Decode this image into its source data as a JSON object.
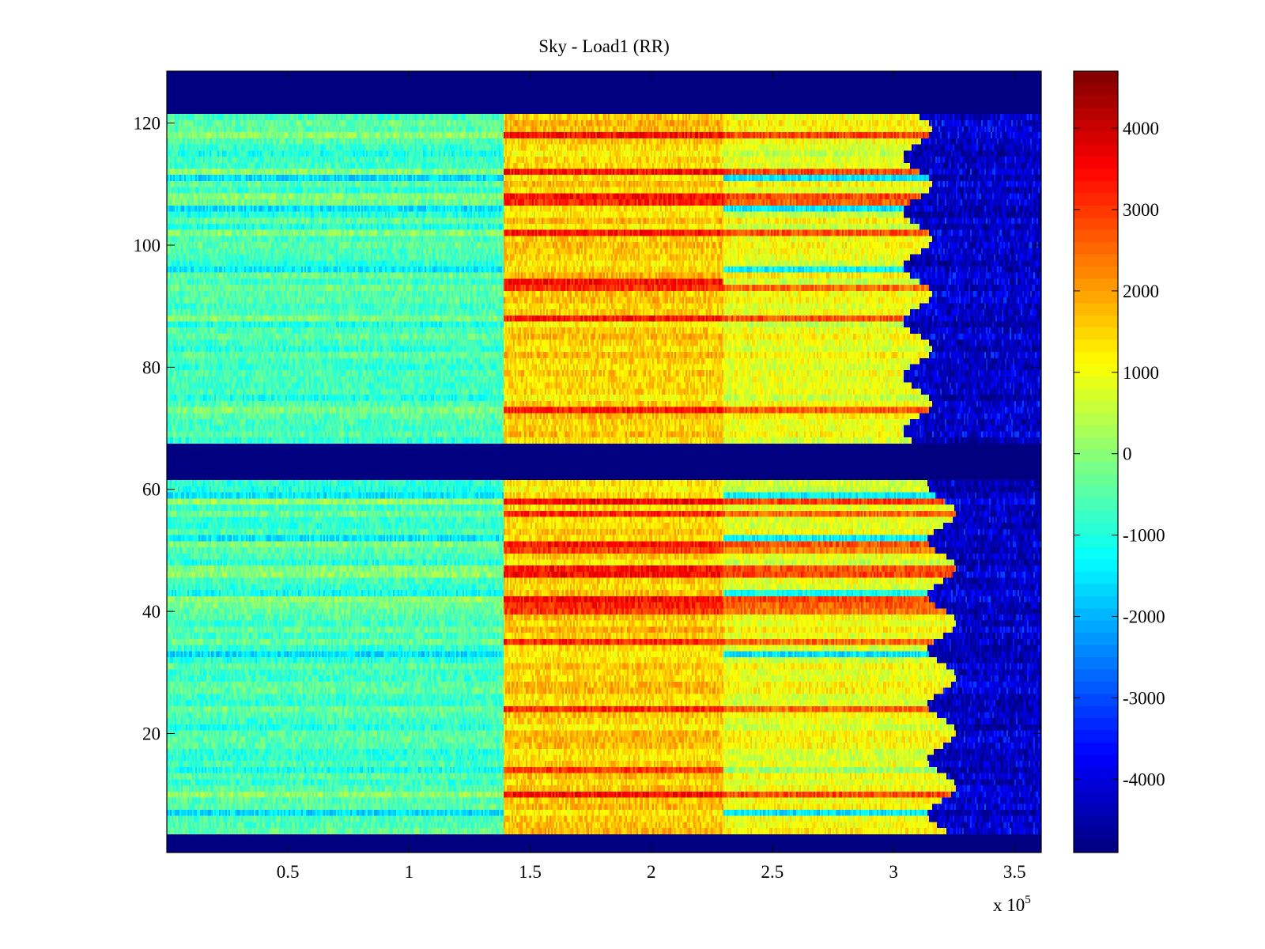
{
  "chart_data": {
    "type": "heatmap",
    "title": "Sky - Load1 (RR)",
    "xlabel": "",
    "ylabel": "",
    "x_multiplier_label": "x 10",
    "x_multiplier_exponent": "5",
    "xlim": [
      0,
      361000
    ],
    "ylim": [
      0.5,
      128.5
    ],
    "x_ticks": [
      50000,
      100000,
      150000,
      200000,
      250000,
      300000,
      350000
    ],
    "x_tick_labels": [
      "0.5",
      "1",
      "1.5",
      "2",
      "2.5",
      "3",
      "3.5"
    ],
    "y_ticks": [
      20,
      40,
      60,
      80,
      100,
      120
    ],
    "y_tick_labels": [
      "20",
      "40",
      "60",
      "80",
      "100",
      "120"
    ],
    "colormap": "jet",
    "clim": [
      -4900,
      4700
    ],
    "colorbar_ticks": [
      4000,
      3000,
      2000,
      1000,
      0,
      -1000,
      -2000,
      -3000,
      -4000
    ],
    "colorbar_tick_labels": [
      "4000",
      "3000",
      "2000",
      "1000",
      "0",
      "-1000",
      "-2000",
      "-3000",
      "-4000"
    ],
    "masked_rows": [
      [
        1,
        3
      ],
      [
        62,
        67
      ],
      [
        122,
        128
      ]
    ],
    "segments": [
      {
        "x_range": [
          0,
          139000
        ],
        "approx_value": -700
      },
      {
        "x_range": [
          139000,
          230000
        ],
        "approx_value": 1500
      },
      {
        "x_range": [
          230000,
          310000
        ],
        "approx_value": 900
      },
      {
        "x_range": [
          310000,
          361000
        ],
        "approx_value": -3500
      }
    ],
    "hot_rows": [
      10,
      14,
      24,
      35,
      40,
      41,
      42,
      46,
      47,
      50,
      51,
      56,
      58,
      73,
      88,
      93,
      94,
      102,
      107,
      108,
      112,
      118
    ],
    "cold_rows": [
      7,
      14,
      33,
      43,
      52,
      59,
      94,
      96,
      106,
      111
    ]
  },
  "colors": {
    "masked": "#00008f",
    "axis": "#000000",
    "background": "#ffffff"
  }
}
